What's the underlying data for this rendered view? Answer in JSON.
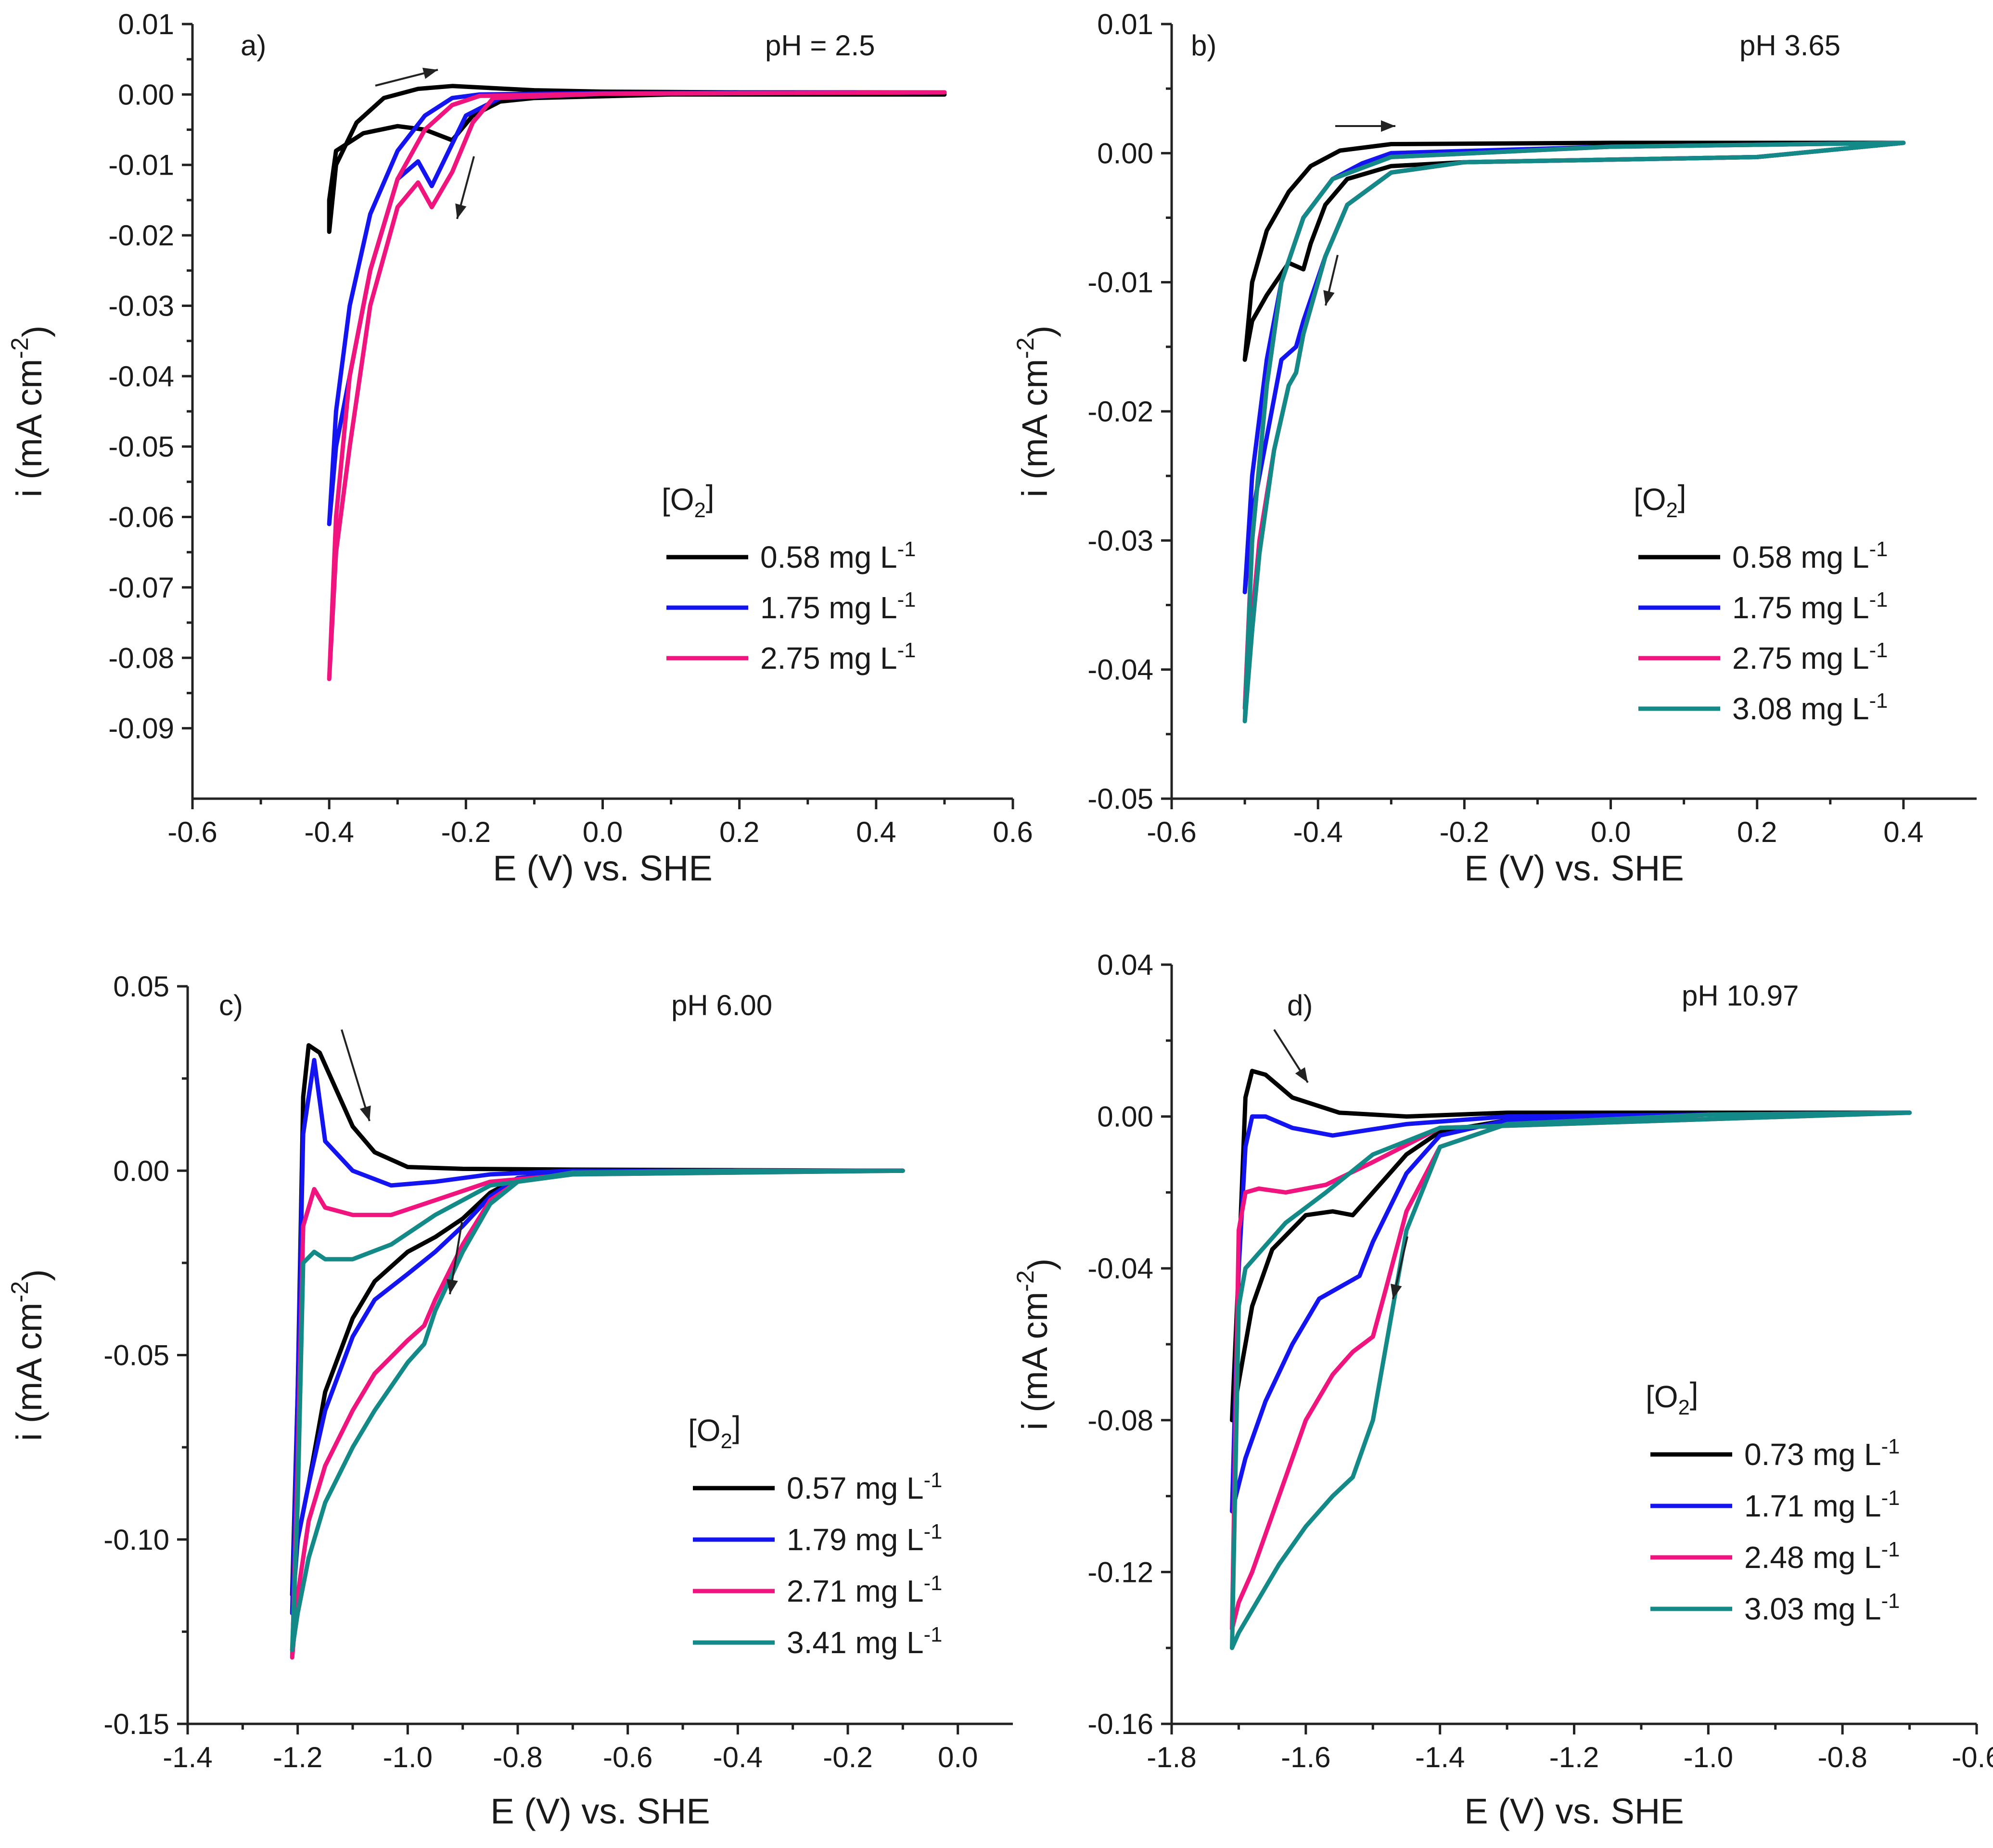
{
  "chart_data": [
    {
      "type": "line",
      "panel_label": "a)",
      "annotation": "pH = 2.5",
      "xlabel": "E (V) vs. SHE",
      "ylabel": "i (mA cm",
      "ylabel_sup": "-2",
      "ylabel_close": ")",
      "xlim": [
        -0.6,
        0.6
      ],
      "ylim": [
        -0.1,
        0.01
      ],
      "xticks": [
        -0.6,
        -0.4,
        -0.2,
        0.0,
        0.2,
        0.4,
        0.6
      ],
      "xtick_labels": [
        "-0.6",
        "-0.4",
        "-0.2",
        "0.0",
        "0.2",
        "0.4",
        "0.6"
      ],
      "yticks": [
        0.01,
        0.0,
        -0.01,
        -0.02,
        -0.03,
        -0.04,
        -0.05,
        -0.06,
        -0.07,
        -0.08,
        -0.09
      ],
      "ytick_labels": [
        "0.01",
        "0.00",
        "-0.01",
        "-0.02",
        "-0.03",
        "-0.04",
        "-0.05",
        "-0.06",
        "-0.07",
        "-0.08",
        "-0.09"
      ],
      "legend_title": "[O",
      "legend_title_sub": "2",
      "legend_title_close": "]",
      "legend_position": "center-right",
      "series": [
        {
          "name": "0.58 mg L",
          "sup": "-1",
          "color": "#000000",
          "x": [
            0.5,
            0.3,
            0.1,
            -0.1,
            -0.15,
            -0.19,
            -0.22,
            -0.26,
            -0.3,
            -0.35,
            -0.39,
            -0.4,
            -0.4,
            -0.39,
            -0.36,
            -0.32,
            -0.27,
            -0.22,
            -0.16,
            -0.1,
            0.0,
            0.2,
            0.5
          ],
          "y": [
            0.0,
            0.0,
            0.0,
            -0.0005,
            -0.001,
            -0.003,
            -0.0065,
            -0.005,
            -0.0045,
            -0.0055,
            -0.008,
            -0.015,
            -0.0195,
            -0.01,
            -0.004,
            -0.0005,
            0.0008,
            0.0012,
            0.0009,
            0.0006,
            0.0004,
            0.0003,
            0.0003
          ]
        },
        {
          "name": "1.75 mg L",
          "sup": "-1",
          "color": "#1414f0",
          "x": [
            0.5,
            0.2,
            0.0,
            -0.15,
            -0.2,
            -0.23,
            -0.25,
            -0.27,
            -0.3,
            -0.34,
            -0.37,
            -0.39,
            -0.4,
            -0.39,
            -0.37,
            -0.34,
            -0.3,
            -0.26,
            -0.22,
            -0.18,
            0.0,
            0.5
          ],
          "y": [
            0.0003,
            0.0002,
            0.0001,
            -0.0005,
            -0.003,
            -0.009,
            -0.013,
            -0.0095,
            -0.012,
            -0.025,
            -0.04,
            -0.05,
            -0.061,
            -0.045,
            -0.03,
            -0.017,
            -0.008,
            -0.003,
            -0.0005,
            0.0,
            0.0002,
            0.0003
          ]
        },
        {
          "name": "2.75 mg L",
          "sup": "-1",
          "color": "#f0147f",
          "x": [
            0.5,
            0.2,
            0.0,
            -0.16,
            -0.19,
            -0.22,
            -0.25,
            -0.27,
            -0.3,
            -0.34,
            -0.37,
            -0.39,
            -0.4,
            -0.39,
            -0.37,
            -0.34,
            -0.3,
            -0.26,
            -0.22,
            -0.18,
            0.0,
            0.5
          ],
          "y": [
            0.0003,
            0.0002,
            0.0001,
            -0.0005,
            -0.004,
            -0.011,
            -0.016,
            -0.0125,
            -0.016,
            -0.03,
            -0.05,
            -0.065,
            -0.083,
            -0.06,
            -0.04,
            -0.025,
            -0.012,
            -0.005,
            -0.0015,
            -0.0002,
            0.0001,
            0.0003
          ]
        }
      ]
    },
    {
      "type": "line",
      "panel_label": "b)",
      "annotation": "pH 3.65",
      "xlabel": "E (V) vs. SHE",
      "ylabel": "i (mA cm",
      "ylabel_sup": "-2",
      "ylabel_close": ")",
      "xlim": [
        -0.6,
        0.5
      ],
      "ylim": [
        -0.05,
        0.01
      ],
      "xticks": [
        -0.6,
        -0.4,
        -0.2,
        0.0,
        0.2,
        0.4
      ],
      "xtick_labels": [
        "-0.6",
        "-0.4",
        "-0.2",
        "0.0",
        "0.2",
        "0.4"
      ],
      "yticks": [
        0.01,
        0.0,
        -0.01,
        -0.02,
        -0.03,
        -0.04,
        -0.05
      ],
      "ytick_labels": [
        "0.01",
        "0.00",
        "-0.01",
        "-0.02",
        "-0.03",
        "-0.04",
        "-0.05"
      ],
      "legend_title": "[O",
      "legend_title_sub": "2",
      "legend_title_close": "]",
      "legend_position": "lower-right",
      "series": [
        {
          "name": "0.58 mg L",
          "sup": "-1",
          "color": "#000000",
          "x": [
            0.4,
            0.2,
            0.0,
            -0.2,
            -0.3,
            -0.36,
            -0.39,
            -0.41,
            -0.42,
            -0.44,
            -0.47,
            -0.49,
            -0.5,
            -0.49,
            -0.47,
            -0.44,
            -0.41,
            -0.37,
            -0.3,
            0.0,
            0.39,
            0.4
          ],
          "y": [
            0.0008,
            -0.0003,
            -0.0005,
            -0.0007,
            -0.001,
            -0.002,
            -0.004,
            -0.007,
            -0.009,
            -0.0085,
            -0.011,
            -0.013,
            -0.016,
            -0.01,
            -0.006,
            -0.003,
            -0.001,
            0.0002,
            0.0007,
            0.0008,
            0.0008,
            0.0008
          ]
        },
        {
          "name": "1.75 mg L",
          "sup": "-1",
          "color": "#1414f0",
          "x": [
            0.4,
            0.2,
            0.0,
            -0.2,
            -0.3,
            -0.36,
            -0.39,
            -0.42,
            -0.43,
            -0.44,
            -0.45,
            -0.47,
            -0.49,
            -0.5,
            -0.49,
            -0.47,
            -0.45,
            -0.42,
            -0.38,
            -0.34,
            -0.3,
            0.0,
            0.4
          ],
          "y": [
            0.0008,
            -0.0003,
            -0.0005,
            -0.0007,
            -0.0015,
            -0.004,
            -0.008,
            -0.013,
            -0.015,
            -0.0155,
            -0.016,
            -0.022,
            -0.028,
            -0.034,
            -0.025,
            -0.016,
            -0.01,
            -0.005,
            -0.002,
            -0.0008,
            0.0,
            0.0005,
            0.0008
          ]
        },
        {
          "name": "2.75 mg L",
          "sup": "-1",
          "color": "#f0147f",
          "x": [
            0.4,
            0.2,
            0.0,
            -0.2,
            -0.3,
            -0.36,
            -0.39,
            -0.42,
            -0.43,
            -0.44,
            -0.46,
            -0.48,
            -0.49,
            -0.5,
            -0.49,
            -0.47,
            -0.45,
            -0.42,
            -0.38,
            -0.3,
            0.0,
            0.4
          ],
          "y": [
            0.0008,
            -0.0003,
            -0.0005,
            -0.0007,
            -0.0015,
            -0.004,
            -0.008,
            -0.014,
            -0.017,
            -0.018,
            -0.023,
            -0.03,
            -0.036,
            -0.043,
            -0.03,
            -0.018,
            -0.01,
            -0.005,
            -0.002,
            -0.0003,
            0.0005,
            0.0008
          ]
        },
        {
          "name": "3.08 mg L",
          "sup": "-1",
          "color": "#138a87",
          "x": [
            0.4,
            0.2,
            0.0,
            -0.2,
            -0.3,
            -0.36,
            -0.39,
            -0.42,
            -0.43,
            -0.44,
            -0.46,
            -0.48,
            -0.49,
            -0.5,
            -0.49,
            -0.47,
            -0.45,
            -0.42,
            -0.38,
            -0.3,
            0.0,
            0.4
          ],
          "y": [
            0.0008,
            -0.0003,
            -0.0005,
            -0.0007,
            -0.0015,
            -0.004,
            -0.008,
            -0.014,
            -0.017,
            -0.018,
            -0.023,
            -0.031,
            -0.037,
            -0.044,
            -0.03,
            -0.018,
            -0.01,
            -0.005,
            -0.002,
            -0.0003,
            0.0005,
            0.0008
          ]
        }
      ]
    },
    {
      "type": "line",
      "panel_label": "c)",
      "annotation": "pH 6.00",
      "xlabel": "E (V) vs. SHE",
      "ylabel": "i (mA cm",
      "ylabel_sup": "-2",
      "ylabel_close": ")",
      "xlim": [
        -1.4,
        0.1
      ],
      "ylim": [
        -0.15,
        0.05
      ],
      "xticks": [
        -1.4,
        -1.2,
        -1.0,
        -0.8,
        -0.6,
        -0.4,
        -0.2,
        0.0
      ],
      "xtick_labels": [
        "-1.4",
        "-1.2",
        "-1.0",
        "-0.8",
        "-0.6",
        "-0.4",
        "-0.2",
        "0.0"
      ],
      "yticks": [
        0.05,
        0.0,
        -0.05,
        -0.1,
        -0.15
      ],
      "ytick_labels": [
        "0.05",
        "0.00",
        "-0.05",
        "-0.10",
        "-0.15"
      ],
      "legend_title": "[O",
      "legend_title_sub": "2",
      "legend_title_close": "]",
      "legend_position": "lower-right",
      "series": [
        {
          "name": "0.57 mg L",
          "sup": "-1",
          "color": "#000000",
          "x": [
            -0.1,
            -0.4,
            -0.7,
            -0.8,
            -0.85,
            -0.9,
            -0.95,
            -1.0,
            -1.06,
            -1.1,
            -1.15,
            -1.18,
            -1.2,
            -1.21,
            -1.2,
            -1.19,
            -1.18,
            -1.16,
            -1.13,
            -1.1,
            -1.06,
            -1.0,
            -0.9,
            -0.7,
            -0.1
          ],
          "y": [
            0.0,
            0.0,
            -0.0005,
            -0.002,
            -0.006,
            -0.013,
            -0.018,
            -0.022,
            -0.03,
            -0.04,
            -0.06,
            -0.085,
            -0.1,
            -0.115,
            -0.06,
            0.02,
            0.034,
            0.032,
            0.022,
            0.012,
            0.005,
            0.001,
            0.0005,
            0.0003,
            0.0
          ]
        },
        {
          "name": "1.79 mg L",
          "sup": "-1",
          "color": "#1414f0",
          "x": [
            -0.1,
            -0.4,
            -0.7,
            -0.8,
            -0.85,
            -0.9,
            -0.95,
            -1.0,
            -1.06,
            -1.1,
            -1.15,
            -1.18,
            -1.2,
            -1.21,
            -1.2,
            -1.19,
            -1.18,
            -1.17,
            -1.15,
            -1.1,
            -1.03,
            -0.95,
            -0.85,
            -0.7,
            -0.1
          ],
          "y": [
            0.0,
            0.0,
            -0.0005,
            -0.002,
            -0.007,
            -0.015,
            -0.022,
            -0.028,
            -0.035,
            -0.045,
            -0.065,
            -0.085,
            -0.1,
            -0.12,
            -0.06,
            0.01,
            0.02,
            0.03,
            0.008,
            0.0,
            -0.004,
            -0.003,
            -0.001,
            0.0,
            0.0
          ]
        },
        {
          "name": "2.71 mg L",
          "sup": "-1",
          "color": "#f0147f",
          "x": [
            -0.1,
            -0.4,
            -0.7,
            -0.8,
            -0.85,
            -0.9,
            -0.95,
            -0.97,
            -1.0,
            -1.06,
            -1.1,
            -1.15,
            -1.18,
            -1.2,
            -1.21,
            -1.2,
            -1.19,
            -1.17,
            -1.15,
            -1.1,
            -1.03,
            -0.95,
            -0.85,
            -0.7,
            -0.1
          ],
          "y": [
            0.0,
            0.0,
            -0.0005,
            -0.003,
            -0.008,
            -0.02,
            -0.035,
            -0.042,
            -0.046,
            -0.055,
            -0.065,
            -0.08,
            -0.095,
            -0.115,
            -0.132,
            -0.08,
            -0.015,
            -0.005,
            -0.01,
            -0.012,
            -0.012,
            -0.008,
            -0.003,
            -0.001,
            0.0
          ]
        },
        {
          "name": "3.41 mg L",
          "sup": "-1",
          "color": "#138a87",
          "x": [
            -0.1,
            -0.4,
            -0.7,
            -0.8,
            -0.85,
            -0.9,
            -0.95,
            -0.97,
            -1.0,
            -1.06,
            -1.1,
            -1.15,
            -1.18,
            -1.2,
            -1.21,
            -1.2,
            -1.19,
            -1.17,
            -1.15,
            -1.1,
            -1.03,
            -0.95,
            -0.85,
            -0.7,
            -0.1
          ],
          "y": [
            0.0,
            0.0,
            -0.0005,
            -0.003,
            -0.009,
            -0.022,
            -0.038,
            -0.047,
            -0.052,
            -0.065,
            -0.075,
            -0.09,
            -0.105,
            -0.12,
            -0.13,
            -0.09,
            -0.025,
            -0.022,
            -0.024,
            -0.024,
            -0.02,
            -0.012,
            -0.004,
            -0.001,
            0.0
          ]
        }
      ]
    },
    {
      "type": "line",
      "panel_label": "d)",
      "annotation": "pH 10.97",
      "xlabel": "E (V) vs. SHE",
      "ylabel": "i (mA cm",
      "ylabel_sup": "-2",
      "ylabel_close": ")",
      "xlim": [
        -1.8,
        -0.6
      ],
      "ylim": [
        -0.16,
        0.04
      ],
      "xticks": [
        -1.8,
        -1.6,
        -1.4,
        -1.2,
        -1.0,
        -0.8,
        -0.6
      ],
      "xtick_labels": [
        "-1.8",
        "-1.6",
        "-1.4",
        "-1.2",
        "-1.0",
        "-0.8",
        "-0.6"
      ],
      "yticks": [
        0.04,
        0.0,
        -0.04,
        -0.08,
        -0.12,
        -0.16
      ],
      "ytick_labels": [
        "0.04",
        "0.00",
        "-0.04",
        "-0.08",
        "-0.12",
        "-0.16"
      ],
      "legend_title": "[O",
      "legend_title_sub": "2",
      "legend_title_close": "]",
      "legend_position": "lower-right",
      "series": [
        {
          "name": "0.73 mg L",
          "sup": "-1",
          "color": "#000000",
          "x": [
            -0.7,
            -1.0,
            -1.3,
            -1.4,
            -1.45,
            -1.5,
            -1.53,
            -1.56,
            -1.6,
            -1.65,
            -1.68,
            -1.7,
            -1.71,
            -1.7,
            -1.69,
            -1.68,
            -1.66,
            -1.62,
            -1.55,
            -1.45,
            -1.3,
            -0.7
          ],
          "y": [
            0.001,
            0.0005,
            -0.001,
            -0.004,
            -0.01,
            -0.02,
            -0.026,
            -0.025,
            -0.026,
            -0.035,
            -0.05,
            -0.07,
            -0.08,
            -0.04,
            0.005,
            0.012,
            0.011,
            0.005,
            0.001,
            0.0,
            0.001,
            0.001
          ]
        },
        {
          "name": "1.71 mg L",
          "sup": "-1",
          "color": "#1414f0",
          "x": [
            -0.7,
            -1.0,
            -1.3,
            -1.4,
            -1.45,
            -1.5,
            -1.52,
            -1.55,
            -1.58,
            -1.62,
            -1.66,
            -1.69,
            -1.7,
            -1.71,
            -1.7,
            -1.69,
            -1.68,
            -1.66,
            -1.62,
            -1.56,
            -1.45,
            -1.3,
            -0.7
          ],
          "y": [
            0.001,
            0.0005,
            -0.001,
            -0.005,
            -0.015,
            -0.033,
            -0.042,
            -0.045,
            -0.048,
            -0.06,
            -0.075,
            -0.09,
            -0.097,
            -0.104,
            -0.04,
            -0.008,
            0.0,
            0.0,
            -0.003,
            -0.005,
            -0.002,
            0.0,
            0.001
          ]
        },
        {
          "name": "2.48 mg L",
          "sup": "-1",
          "color": "#f0147f",
          "x": [
            -0.7,
            -1.0,
            -1.3,
            -1.4,
            -1.45,
            -1.48,
            -1.5,
            -1.53,
            -1.56,
            -1.6,
            -1.64,
            -1.68,
            -1.7,
            -1.71,
            -1.7,
            -1.69,
            -1.67,
            -1.63,
            -1.57,
            -1.5,
            -1.4,
            -0.7
          ],
          "y": [
            0.001,
            0.0005,
            -0.002,
            -0.008,
            -0.025,
            -0.045,
            -0.058,
            -0.062,
            -0.068,
            -0.08,
            -0.1,
            -0.12,
            -0.128,
            -0.135,
            -0.03,
            -0.02,
            -0.019,
            -0.02,
            -0.018,
            -0.012,
            -0.003,
            0.001
          ]
        },
        {
          "name": "3.03 mg L",
          "sup": "-1",
          "color": "#138a87",
          "x": [
            -0.7,
            -1.0,
            -1.3,
            -1.4,
            -1.45,
            -1.48,
            -1.5,
            -1.53,
            -1.56,
            -1.6,
            -1.64,
            -1.68,
            -1.7,
            -1.71,
            -1.7,
            -1.69,
            -1.67,
            -1.63,
            -1.57,
            -1.5,
            -1.4,
            -0.7
          ],
          "y": [
            0.001,
            0.0005,
            -0.002,
            -0.008,
            -0.03,
            -0.06,
            -0.08,
            -0.095,
            -0.1,
            -0.108,
            -0.118,
            -0.13,
            -0.136,
            -0.14,
            -0.05,
            -0.04,
            -0.036,
            -0.028,
            -0.02,
            -0.01,
            -0.003,
            0.001
          ]
        }
      ]
    }
  ]
}
